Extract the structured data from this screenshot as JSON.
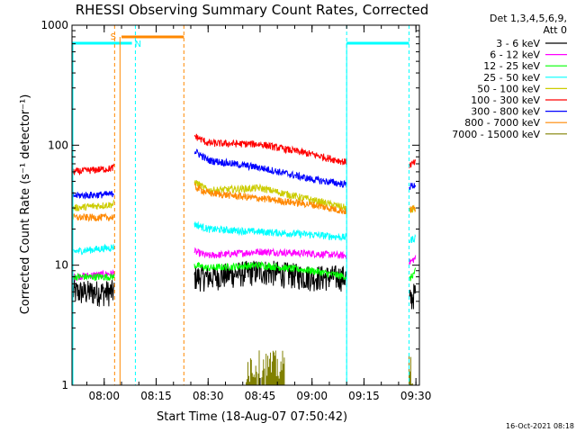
{
  "chart_data": {
    "type": "line",
    "title": "RHESSI Observing Summary Count Rates, Corrected",
    "xlabel": "Start Time (18-Aug-07 07:50:42)",
    "ylabel": "Corrected Count Rate (s⁻¹ detector⁻¹)",
    "y_scale": "log",
    "ylim": [
      1,
      1000
    ],
    "x_range": [
      "07:50:42",
      "09:31:00"
    ],
    "x_ticks": [
      "08:00",
      "08:15",
      "08:30",
      "08:45",
      "09:00",
      "09:15",
      "09:30"
    ],
    "y_ticks": [
      "1",
      "10",
      "100",
      "1000"
    ],
    "grid": false,
    "legend_position": "right",
    "legend_header": [
      "Det 1,3,4,5,6,9,",
      "Att 0"
    ],
    "timestamp": "16-Oct-2021 08:18",
    "markers": {
      "saa_label": "S",
      "night_label": "N",
      "night_bars": [
        [
          "07:50:42",
          "08:08:00"
        ],
        [
          "09:10:00",
          "09:28:00"
        ]
      ],
      "saa_bar": [
        "08:05:00",
        "08:23:00"
      ],
      "vlines_cyan": [
        "08:09:00",
        "09:10:00",
        "09:28:00"
      ],
      "vlines_orange": [
        "08:03:00",
        "08:23:00"
      ]
    },
    "gaps": [
      [
        "08:03:00",
        "08:26:00"
      ],
      [
        "09:10:00",
        "09:28:00"
      ]
    ],
    "series": [
      {
        "name": "3 - 6 keV",
        "color": "#000000",
        "points": [
          [
            "07:51",
            6
          ],
          [
            "08:02",
            6
          ],
          [
            "08:26",
            8
          ],
          [
            "08:30",
            8
          ],
          [
            "08:45",
            9
          ],
          [
            "09:00",
            8
          ],
          [
            "09:10",
            8
          ],
          [
            "09:28",
            5
          ],
          [
            "09:30",
            6
          ]
        ]
      },
      {
        "name": "6 - 12 keV",
        "color": "#ff00ff",
        "points": [
          [
            "07:51",
            8
          ],
          [
            "08:02",
            8.5
          ],
          [
            "08:26",
            13
          ],
          [
            "08:30",
            12
          ],
          [
            "08:45",
            13
          ],
          [
            "09:00",
            12.5
          ],
          [
            "09:10",
            12
          ],
          [
            "09:28",
            10.5
          ],
          [
            "09:30",
            11.5
          ]
        ]
      },
      {
        "name": "12 - 25 keV",
        "color": "#00ff00",
        "points": [
          [
            "07:51",
            8
          ],
          [
            "08:02",
            8
          ],
          [
            "08:26",
            10
          ],
          [
            "08:30",
            9.5
          ],
          [
            "08:45",
            10
          ],
          [
            "09:00",
            9
          ],
          [
            "09:10",
            8
          ],
          [
            "09:28",
            7.5
          ],
          [
            "09:30",
            9
          ]
        ]
      },
      {
        "name": "25 - 50 keV",
        "color": "#00ffff",
        "points": [
          [
            "07:51",
            13
          ],
          [
            "08:02",
            14
          ],
          [
            "08:26",
            22
          ],
          [
            "08:30",
            20
          ],
          [
            "08:45",
            19
          ],
          [
            "09:00",
            18
          ],
          [
            "09:10",
            17
          ],
          [
            "09:28",
            16
          ],
          [
            "09:30",
            17
          ]
        ]
      },
      {
        "name": "50 - 100 keV",
        "color": "#cccc00",
        "points": [
          [
            "07:51",
            30
          ],
          [
            "08:02",
            32
          ],
          [
            "08:26",
            50
          ],
          [
            "08:30",
            42
          ],
          [
            "08:45",
            44
          ],
          [
            "09:00",
            35
          ],
          [
            "09:10",
            30
          ],
          [
            "09:28",
            28
          ],
          [
            "09:30",
            30
          ]
        ]
      },
      {
        "name": "100 - 300 keV",
        "color": "#ff0000",
        "points": [
          [
            "07:51",
            60
          ],
          [
            "08:02",
            64
          ],
          [
            "08:26",
            120
          ],
          [
            "08:30",
            104
          ],
          [
            "08:45",
            102
          ],
          [
            "09:00",
            84
          ],
          [
            "09:10",
            72
          ],
          [
            "09:28",
            68
          ],
          [
            "09:30",
            72
          ]
        ]
      },
      {
        "name": "300 - 800 keV",
        "color": "#0000ff",
        "points": [
          [
            "07:51",
            38
          ],
          [
            "08:02",
            39
          ],
          [
            "08:26",
            90
          ],
          [
            "08:30",
            75
          ],
          [
            "08:45",
            65
          ],
          [
            "09:00",
            52
          ],
          [
            "09:10",
            47
          ],
          [
            "09:28",
            45
          ],
          [
            "09:30",
            47
          ]
        ]
      },
      {
        "name": "800 - 7000 keV",
        "color": "#ff8800",
        "points": [
          [
            "07:51",
            25
          ],
          [
            "08:02",
            25
          ],
          [
            "08:26",
            45
          ],
          [
            "08:30",
            40
          ],
          [
            "08:45",
            36
          ],
          [
            "09:00",
            32
          ],
          [
            "09:10",
            28
          ],
          [
            "09:28",
            29
          ],
          [
            "09:30",
            30
          ]
        ]
      },
      {
        "name": "7000 - 15000 keV",
        "color": "#808000",
        "points": [
          [
            "08:41",
            2
          ],
          [
            "08:50",
            1.9
          ],
          [
            "09:29",
            1.9
          ]
        ]
      }
    ]
  }
}
